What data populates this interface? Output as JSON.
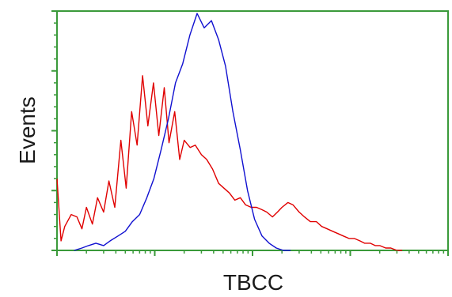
{
  "chart_data": {
    "type": "line",
    "title": "",
    "xlabel": "TBCC",
    "ylabel": "Events",
    "x_scale": "log",
    "xlim": [
      1,
      10000
    ],
    "ylim": [
      0,
      100
    ],
    "grid": false,
    "legend": "none",
    "axis_color": "#3a9a3a",
    "series": [
      {
        "color": "#e00000",
        "x": [
          1.0,
          1.1,
          1.2,
          1.4,
          1.6,
          1.8,
          2.0,
          2.3,
          2.6,
          3.0,
          3.4,
          3.9,
          4.5,
          5.1,
          5.8,
          6.6,
          7.5,
          8.5,
          9.7,
          11,
          12.5,
          14,
          16,
          18,
          20,
          23,
          26,
          30,
          34,
          39,
          45,
          51,
          58,
          66,
          75,
          85,
          97,
          110,
          125,
          140,
          160,
          180,
          200,
          230,
          260,
          300,
          340,
          390,
          450,
          510,
          580,
          660,
          750,
          850,
          970,
          1100,
          1250,
          1400,
          1600,
          1800,
          2000,
          2300,
          2600,
          3000,
          3400
        ],
        "y": [
          30,
          4,
          10,
          15,
          14,
          9,
          18,
          11,
          22,
          16,
          29,
          18,
          46,
          26,
          58,
          44,
          73,
          52,
          70,
          48,
          68,
          45,
          58,
          38,
          46,
          43,
          44,
          40,
          38,
          34,
          28,
          26,
          24,
          21,
          22,
          19,
          18,
          18,
          17,
          16,
          14,
          16,
          18,
          20,
          19,
          16,
          14,
          12,
          12,
          10,
          9,
          8,
          7,
          6,
          5,
          5,
          4,
          3,
          3,
          2,
          2,
          1,
          1,
          0,
          0
        ]
      },
      {
        "color": "#1010d0",
        "x": [
          1.5,
          1.8,
          2.1,
          2.5,
          3.0,
          3.5,
          4.2,
          5.0,
          5.9,
          7.0,
          8.3,
          9.8,
          11.6,
          13.8,
          16.3,
          19.3,
          22.9,
          27.1,
          32,
          38,
          45,
          53,
          63,
          75,
          89,
          105,
          125,
          148,
          175,
          207,
          245
        ],
        "y": [
          0,
          1,
          2,
          3,
          2,
          4,
          6,
          8,
          12,
          15,
          22,
          30,
          42,
          55,
          70,
          78,
          90,
          99,
          93,
          96,
          88,
          77,
          58,
          42,
          25,
          13,
          6,
          3,
          1,
          0,
          0
        ]
      }
    ]
  }
}
